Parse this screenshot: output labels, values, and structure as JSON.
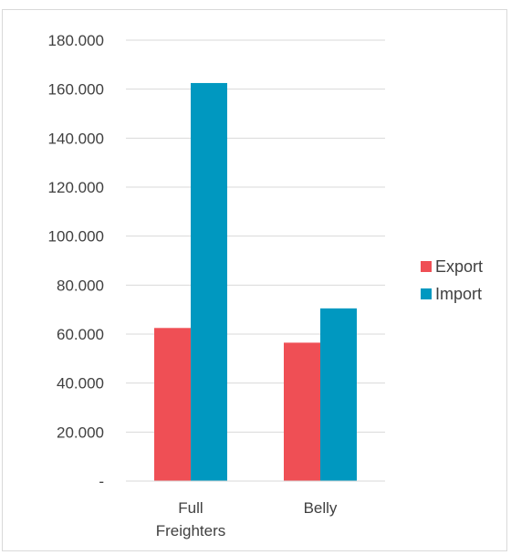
{
  "chart_data": {
    "type": "bar",
    "categories": [
      [
        "Full",
        "Freighters"
      ],
      [
        "Belly"
      ]
    ],
    "series": [
      {
        "name": "Export",
        "values": [
          62500,
          56500
        ],
        "color": "#ef4f55"
      },
      {
        "name": "Import",
        "values": [
          162500,
          70500
        ],
        "color": "#0098c0"
      }
    ],
    "ylim": [
      0,
      180000
    ],
    "yticks": [
      "-",
      "20.000",
      "40.000",
      "60.000",
      "80.000",
      "100.000",
      "120.000",
      "140.000",
      "160.000",
      "180.000"
    ],
    "grid": true,
    "legend_position": "right"
  }
}
